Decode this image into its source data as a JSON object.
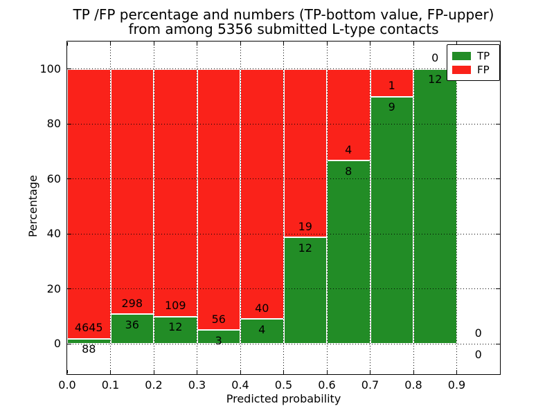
{
  "chart_data": {
    "type": "bar",
    "subtype": "stacked-percentage-histogram",
    "title_line1": "TP /FP percentage and numbers (TP-bottom value, FP-upper)",
    "title_line2": "from among 5356 submitted L-type contacts",
    "xlabel": "Predicted probability",
    "ylabel": "Percentage",
    "bin_edges": [
      0.0,
      0.1,
      0.2,
      0.3,
      0.4,
      0.5,
      0.6,
      0.7,
      0.8,
      0.9,
      1.0
    ],
    "x_tick_values": [
      0.0,
      0.1,
      0.2,
      0.3,
      0.4,
      0.5,
      0.6,
      0.7,
      0.8,
      0.9
    ],
    "x_tick_labels": [
      "0.0",
      "0.1",
      "0.2",
      "0.3",
      "0.4",
      "0.5",
      "0.6",
      "0.7",
      "0.8",
      "0.9"
    ],
    "y_tick_values": [
      0,
      20,
      40,
      60,
      80,
      100
    ],
    "y_tick_labels": [
      "0",
      "20",
      "40",
      "60",
      "80",
      "100"
    ],
    "xlim": [
      0.0,
      1.0
    ],
    "ylim": [
      -11,
      110
    ],
    "grid": "dotted-black",
    "series": [
      {
        "name": "TP",
        "color": "#228c26",
        "counts": [
          88,
          36,
          12,
          3,
          4,
          12,
          8,
          9,
          12,
          0
        ]
      },
      {
        "name": "FP",
        "color": "#fa221a",
        "counts": [
          4645,
          298,
          109,
          56,
          40,
          19,
          4,
          1,
          0,
          0
        ]
      }
    ],
    "tp_percent": [
      1.86,
      10.78,
      9.92,
      5.08,
      9.09,
      38.71,
      66.67,
      90.0,
      100.0,
      null
    ],
    "legend": {
      "position": "upper-right",
      "entries": [
        "TP",
        "FP"
      ]
    }
  }
}
